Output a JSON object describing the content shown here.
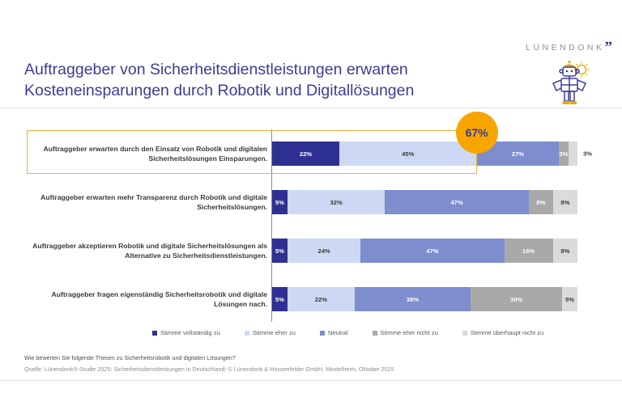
{
  "header": {
    "title_line1": "Auftraggeber von Sicherheitsdienstleistungen erwarten",
    "title_line2": "Kosteneinsparungen durch Robotik und Digitallösungen",
    "title_color": "#3C3D96",
    "logo_text": "LÜNENDONK",
    "logo_quotes": "”",
    "logo_quote_color": "#2E3192"
  },
  "chart_data": {
    "type": "bar",
    "subtype": "horizontal-stacked-100pct",
    "unit": "%",
    "xlim": [
      0,
      100
    ],
    "legend_position": "bottom",
    "categories": [
      "Auftraggeber erwarten durch den Einsatz von Robotik und digitalen Sicherheitslösungen Einsparungen.",
      "Auftraggeber erwarten mehr Transparenz durch Robotik und digitale Sicherheitslösungen.",
      "Auftraggeber akzeptieren Robotik und digitale Sicherheitslösungen als Alternative zu Sicherheitsdienstleistungen.",
      "Auftraggeber fragen eigenständig Sicherheitsrobotik und digitale Lösungen nach."
    ],
    "series": [
      {
        "name": "Stimme vollständig zu",
        "color": "#2E3192",
        "text_color": "#FFFFFF",
        "values": [
          22,
          5,
          5,
          5
        ]
      },
      {
        "name": "Stimme eher zu",
        "color": "#CDD9F4",
        "text_color": "#3A3A3A",
        "values": [
          45,
          32,
          24,
          22
        ]
      },
      {
        "name": "Neutral",
        "color": "#7D8DCE",
        "text_color": "#FFFFFF",
        "values": [
          27,
          47,
          47,
          38
        ]
      },
      {
        "name": "Stimme eher nicht zu",
        "color": "#A9A9A9",
        "text_color": "#FFFFFF",
        "values": [
          3,
          8,
          16,
          30
        ]
      },
      {
        "name": "Stimme überhaupt nicht zu",
        "color": "#DBDBDB",
        "text_color": "#3A3A3A",
        "values": [
          3,
          8,
          8,
          5
        ]
      }
    ],
    "annotation": {
      "text": "67%",
      "row": 0,
      "covers_series": [
        0,
        1
      ],
      "circle_color": "#F7A600",
      "text_color": "#3A3A8C",
      "box_border_color": "#E4B43C"
    }
  },
  "footer": {
    "question": "Wie bewerten Sie folgende Thesen zu Sicherheitsrobotik und digitalen Lösungen?",
    "source": "Quelle: Lünendonk®-Studie 2025: Sicherheitsdienstleistungen in Deutschland; © Lünendonk & Hossenfelder GmbH, Mindelheim, Oktober 2025"
  }
}
